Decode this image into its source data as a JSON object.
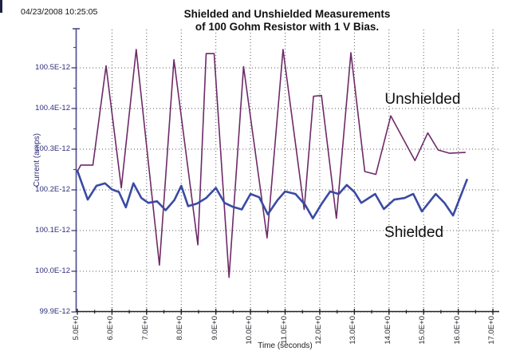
{
  "header": {
    "timestamp": "04/23/2008 10:25:05"
  },
  "chart_data": {
    "type": "line",
    "title_line1": "Shielded and Unshielded Measurements",
    "title_line2": "of 100 Gohm Resistor with 1 V Bias.",
    "xlabel": "Time (seconds)",
    "ylabel": "Current (amps)",
    "xlim": [
      5.0,
      17.2
    ],
    "ylim": [
      99.9,
      100.6
    ],
    "grid": "dotted-both-axes",
    "legend": "none (inline text annotations)",
    "x_ticks": [
      {
        "t": 5,
        "label": "5.0E+0"
      },
      {
        "t": 6,
        "label": "6.0E+0"
      },
      {
        "t": 7,
        "label": "7.0E+0"
      },
      {
        "t": 8,
        "label": "8.0E+0"
      },
      {
        "t": 9,
        "label": "9.0E+0"
      },
      {
        "t": 10,
        "label": "10.0E+0"
      },
      {
        "t": 11,
        "label": "11.0E+0"
      },
      {
        "t": 12,
        "label": "12.0E+0"
      },
      {
        "t": 13,
        "label": "13.0E+0"
      },
      {
        "t": 14,
        "label": "14.0E+0"
      },
      {
        "t": 15,
        "label": "15.0E+0"
      },
      {
        "t": 16,
        "label": "16.0E+0"
      },
      {
        "t": 17,
        "label": "17.0E+0"
      }
    ],
    "y_ticks": [
      {
        "v": 100.5,
        "label": "100.5E-12"
      },
      {
        "v": 100.4,
        "label": "100.4E-12"
      },
      {
        "v": 100.3,
        "label": "100.3E-12"
      },
      {
        "v": 100.2,
        "label": "100.2E-12"
      },
      {
        "v": 100.1,
        "label": "100.1E-12"
      },
      {
        "v": 100.0,
        "label": "100.0E-12"
      },
      {
        "v": 99.9,
        "label": "99.9E-12"
      }
    ],
    "annotations": [
      {
        "text": "Unshielded",
        "t": 14.97,
        "v": 100.422
      },
      {
        "text": "Shielded",
        "t": 14.72,
        "v": 100.094
      }
    ],
    "series": [
      {
        "name": "Unshielded",
        "color": "#6d2a68",
        "width": 1.6,
        "points": [
          [
            5.0,
            100.245
          ],
          [
            5.1,
            100.261
          ],
          [
            5.45,
            100.261
          ],
          [
            5.83,
            100.505
          ],
          [
            6.27,
            100.205
          ],
          [
            6.7,
            100.545
          ],
          [
            7.37,
            100.015
          ],
          [
            7.79,
            100.52
          ],
          [
            8.48,
            100.065
          ],
          [
            8.72,
            100.535
          ],
          [
            8.95,
            100.535
          ],
          [
            9.38,
            99.985
          ],
          [
            9.8,
            100.503
          ],
          [
            10.48,
            100.082
          ],
          [
            10.94,
            100.545
          ],
          [
            11.55,
            100.152
          ],
          [
            11.82,
            100.43
          ],
          [
            12.05,
            100.432
          ],
          [
            12.48,
            100.13
          ],
          [
            12.9,
            100.537
          ],
          [
            13.3,
            100.245
          ],
          [
            13.62,
            100.238
          ],
          [
            14.05,
            100.382
          ],
          [
            14.75,
            100.272
          ],
          [
            15.12,
            100.34
          ],
          [
            15.42,
            100.298
          ],
          [
            15.75,
            100.29
          ],
          [
            16.2,
            100.292
          ]
        ]
      },
      {
        "name": "Shielded",
        "color": "#3a4aa4",
        "width": 2.6,
        "points": [
          [
            5.0,
            100.247
          ],
          [
            5.3,
            100.176
          ],
          [
            5.55,
            100.21
          ],
          [
            5.8,
            100.216
          ],
          [
            6.0,
            100.201
          ],
          [
            6.2,
            100.195
          ],
          [
            6.4,
            100.157
          ],
          [
            6.62,
            100.216
          ],
          [
            6.85,
            100.18
          ],
          [
            7.05,
            100.168
          ],
          [
            7.3,
            100.172
          ],
          [
            7.55,
            100.15
          ],
          [
            7.8,
            100.175
          ],
          [
            8.0,
            100.21
          ],
          [
            8.2,
            100.16
          ],
          [
            8.45,
            100.166
          ],
          [
            8.72,
            100.18
          ],
          [
            9.0,
            100.205
          ],
          [
            9.25,
            100.168
          ],
          [
            9.5,
            100.158
          ],
          [
            9.75,
            100.152
          ],
          [
            10.0,
            100.19
          ],
          [
            10.25,
            100.182
          ],
          [
            10.5,
            100.14
          ],
          [
            10.78,
            100.175
          ],
          [
            11.0,
            100.196
          ],
          [
            11.3,
            100.19
          ],
          [
            11.58,
            100.163
          ],
          [
            11.8,
            100.13
          ],
          [
            12.05,
            100.165
          ],
          [
            12.3,
            100.196
          ],
          [
            12.55,
            100.19
          ],
          [
            12.78,
            100.212
          ],
          [
            13.0,
            100.195
          ],
          [
            13.2,
            100.168
          ],
          [
            13.6,
            100.19
          ],
          [
            13.85,
            100.153
          ],
          [
            14.15,
            100.176
          ],
          [
            14.45,
            100.18
          ],
          [
            14.7,
            100.19
          ],
          [
            14.95,
            100.147
          ],
          [
            15.35,
            100.19
          ],
          [
            15.6,
            100.168
          ],
          [
            15.85,
            100.137
          ],
          [
            16.25,
            100.225
          ]
        ]
      }
    ],
    "colors": {
      "grid": "#5a5a5a",
      "y_axis": "#4a4a8c",
      "x_axis": "#222222",
      "y_tick_text": "#2e2e7a",
      "x_tick_text": "#2b2b33"
    }
  }
}
